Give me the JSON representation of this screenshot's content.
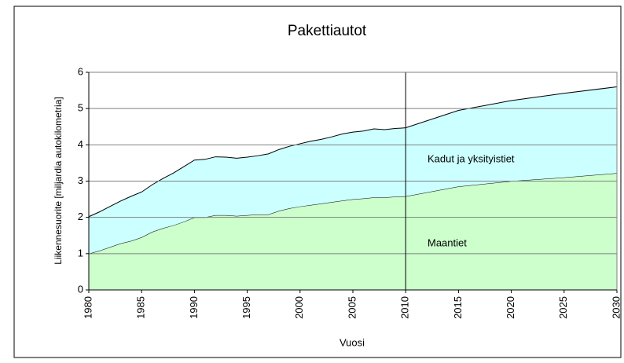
{
  "chart_data": {
    "type": "stacked_area",
    "title": "Pakettiautot",
    "xlabel": "Vuosi",
    "ylabel": "Liikennesuorite [miljardia autokilometria]",
    "x": [
      1980,
      1981,
      1982,
      1983,
      1984,
      1985,
      1986,
      1987,
      1988,
      1989,
      1990,
      1991,
      1992,
      1993,
      1994,
      1995,
      1996,
      1997,
      1998,
      1999,
      2000,
      2001,
      2002,
      2003,
      2004,
      2005,
      2006,
      2007,
      2008,
      2009,
      2010,
      2015,
      2020,
      2025,
      2030
    ],
    "series": [
      {
        "name": "Maantiet",
        "color": "#ccffcc",
        "values": [
          1.0,
          1.08,
          1.18,
          1.28,
          1.35,
          1.45,
          1.6,
          1.7,
          1.78,
          1.88,
          2.0,
          2.0,
          2.06,
          2.06,
          2.04,
          2.06,
          2.08,
          2.08,
          2.18,
          2.25,
          2.3,
          2.34,
          2.38,
          2.42,
          2.46,
          2.5,
          2.52,
          2.55,
          2.55,
          2.57,
          2.58,
          2.85,
          3.0,
          3.1,
          3.22
        ]
      },
      {
        "name": "Kadut ja yksityistiet",
        "color": "#ccffff",
        "values": [
          1.02,
          1.07,
          1.12,
          1.17,
          1.23,
          1.25,
          1.3,
          1.37,
          1.44,
          1.52,
          1.58,
          1.6,
          1.61,
          1.6,
          1.59,
          1.6,
          1.62,
          1.67,
          1.69,
          1.71,
          1.73,
          1.76,
          1.77,
          1.8,
          1.84,
          1.85,
          1.86,
          1.89,
          1.87,
          1.88,
          1.89,
          2.1,
          2.22,
          2.32,
          2.38
        ]
      }
    ],
    "xlim": [
      1980,
      2030
    ],
    "xticks": [
      1980,
      1985,
      1990,
      1995,
      2000,
      2005,
      2010,
      2015,
      2020,
      2025,
      2030
    ],
    "ylim": [
      0,
      6
    ],
    "yticks": [
      0,
      1,
      2,
      3,
      4,
      5,
      6
    ],
    "grid": true,
    "vline": 2010
  }
}
